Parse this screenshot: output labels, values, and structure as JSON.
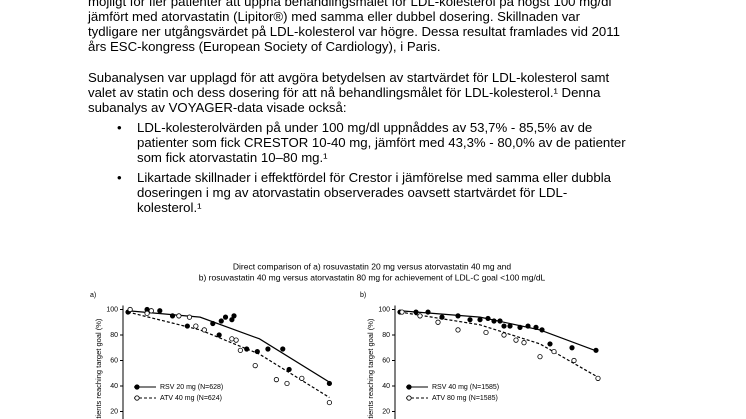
{
  "document": {
    "lines": [
      "möjligt för fler patienter att uppnå behandlingsmålet för LDL-kolesterol på högst 100 mg/dl",
      "jämfört med atorvastatin (Lipitor®) med samma eller dubbel dosering. Skillnaden var",
      "tydligare ner utgångsvärdet på LDL-kolesterol var högre. Dessa resultat framlades vid 2011",
      "års ESC-kongress (European Society of Cardiology), i Paris.",
      "Subanalysen var upplagd för att avgöra betydelsen av startvärdet för LDL-kolesterol samt",
      "valet av statin och dess dosering för att nå behandlingsmålet för LDL-kolesterol.¹ Denna",
      "subanalys av VOYAGER-data visade också:"
    ],
    "bullets": [
      [
        "LDL-kolesterolvärden på under 100 mg/dl uppnåddes av 53,7% - 85,5% av de",
        "patienter som fick CRESTOR 10-40 mg, jämfört med 43,3% - 80,0% av de patienter",
        "som fick atorvastatin 10–80 mg.¹"
      ],
      [
        "Likartade skillnader i effektfördel för Crestor i jämförelse med samma eller dubbla",
        "doseringen i mg av atorvastatin observerades oavsett startvärdet för LDL-",
        "kolesterol.¹"
      ]
    ]
  },
  "figure": {
    "title": [
      "Direct comparison of a) rosuvastatin 20 mg versus atorvastatin 40 mg and",
      "b) rosuvastatin 40 mg versus atorvastatin 80 mg for achievement of LDL-C goal <100 mg/dL"
    ],
    "chart_data": [
      {
        "type": "scatter",
        "panel": "a)",
        "ylabel": "Patients reaching target goal (%)",
        "xlim": [
          0,
          100
        ],
        "ylim": [
          0,
          100
        ],
        "yticks": [
          20,
          40,
          60,
          80,
          100
        ],
        "series": [
          {
            "name": "RSV 20 mg (N=628)",
            "marker": "filled",
            "x": [
              0,
              9,
              15,
              21,
              28,
              40,
              44,
              46,
              49,
              50,
              43,
              56,
              61,
              66,
              73,
              76,
              95
            ],
            "values": [
              98,
              100,
              99,
              95,
              87,
              89,
              91,
              94,
              92,
              95,
              80,
              69,
              67,
              69,
              69,
              53,
              42
            ],
            "fit_x": [
              0,
              34,
              62,
              95
            ],
            "fit": [
              99,
              94,
              77,
              43
            ]
          },
          {
            "name": "ATV 40 mg (N=624)",
            "marker": "open",
            "x": [
              1,
              9,
              11,
              24,
              29,
              32,
              36,
              49,
              51,
              53,
              60,
              70,
              75,
              82,
              95
            ],
            "values": [
              100,
              97,
              99,
              95,
              94,
              87,
              84,
              77,
              76,
              68,
              56,
              45,
              42,
              46,
              27
            ],
            "fit_x": [
              0,
              34,
              62,
              95
            ],
            "fit": [
              98,
              84,
              65,
              31
            ]
          }
        ]
      },
      {
        "type": "scatter",
        "panel": "b)",
        "ylabel": "Patients reaching target goal (%)",
        "xlim": [
          0,
          100
        ],
        "ylim": [
          0,
          100
        ],
        "yticks": [
          20,
          40,
          60,
          80,
          100
        ],
        "series": [
          {
            "name": "RSV 40 mg (N=1585)",
            "marker": "filled",
            "x": [
              0,
              8,
              14,
              21,
              29,
              35,
              40,
              44,
              47,
              50,
              52,
              55,
              60,
              64,
              68,
              71,
              75,
              86,
              98
            ],
            "values": [
              98,
              98,
              98,
              94,
              95,
              92,
              92,
              93,
              91,
              91,
              87,
              87,
              86,
              87,
              86,
              84,
              73,
              70,
              68
            ],
            "fit_x": [
              0,
              40,
              70,
              99
            ],
            "fit": [
              99,
              94,
              84,
              67
            ]
          },
          {
            "name": "ATV 80 mg (N=1585)",
            "marker": "open",
            "x": [
              1,
              10,
              19,
              29,
              43,
              52,
              58,
              62,
              70,
              77,
              87,
              99
            ],
            "values": [
              98,
              95,
              90,
              84,
              82,
              80,
              76,
              74,
              63,
              67,
              60,
              46
            ],
            "fit_x": [
              0,
              40,
              70,
              100
            ],
            "fit": [
              98,
              88,
              73,
              46
            ]
          }
        ]
      }
    ]
  }
}
